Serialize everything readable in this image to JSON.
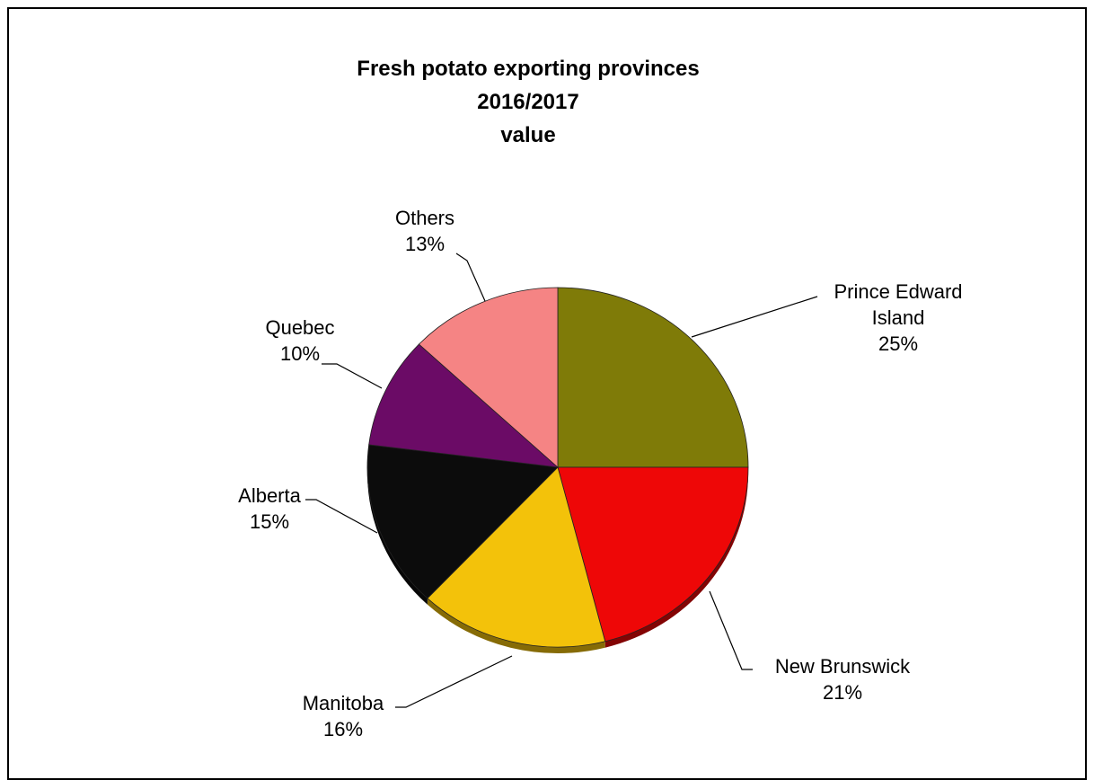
{
  "chart_data": {
    "type": "pie",
    "title_lines": [
      "Fresh potato exporting provinces",
      "2016/2017",
      "value"
    ],
    "slices": [
      {
        "name": "Prince Edward Island",
        "label_lines": [
          "Prince Edward",
          "Island"
        ],
        "value": 25,
        "value_label": "25%",
        "color": "#7f7b08"
      },
      {
        "name": "New Brunswick",
        "label_lines": [
          "New Brunswick"
        ],
        "value": 21,
        "value_label": "21%",
        "color": "#ee0707"
      },
      {
        "name": "Manitoba",
        "label_lines": [
          "Manitoba"
        ],
        "value": 16,
        "value_label": "16%",
        "color": "#f3c20a"
      },
      {
        "name": "Alberta",
        "label_lines": [
          "Alberta"
        ],
        "value": 15,
        "value_label": "15%",
        "color": "#0c0c0c"
      },
      {
        "name": "Quebec",
        "label_lines": [
          "Quebec"
        ],
        "value": 10,
        "value_label": "10%",
        "color": "#6b0b66"
      },
      {
        "name": "Others",
        "label_lines": [
          "Others"
        ],
        "value": 13,
        "value_label": "13%",
        "color": "#f58484"
      }
    ]
  }
}
